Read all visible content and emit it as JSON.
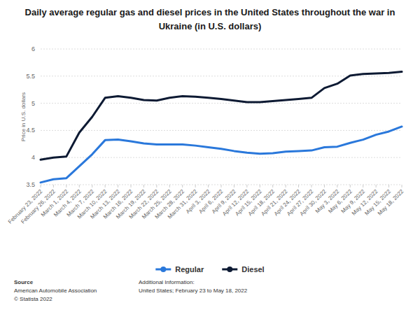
{
  "chart_data": {
    "type": "line",
    "title": "Daily average regular gas and diesel prices in the United States throughout the war in Ukraine (in U.S. dollars)",
    "y_label": "Price in U.S. dollars",
    "categories": [
      "February 23, 2022",
      "February 26, 2022",
      "March 1, 2022",
      "March 4, 2022",
      "March 7, 2022",
      "March 10, 2022",
      "March 13, 2022",
      "March 16, 2022",
      "March 19, 2022",
      "March 22, 2022",
      "March 25, 2022",
      "March 28, 2022",
      "March 31, 2022",
      "April 3, 2022",
      "April 6, 2022",
      "April 9, 2022",
      "April 12, 2022",
      "April 15, 2022",
      "April 18, 2022",
      "April 21, 2022",
      "April 24, 2022",
      "April 27, 2022",
      "April 30, 2022",
      "May 3, 2022",
      "May 6, 2022",
      "May 9, 2022",
      "May 12, 2022",
      "May 15, 2022",
      "May 18, 2022"
    ],
    "series": [
      {
        "name": "Regular",
        "color": "#2a78db",
        "values": [
          3.54,
          3.6,
          3.62,
          3.84,
          4.06,
          4.32,
          4.33,
          4.3,
          4.26,
          4.24,
          4.24,
          4.24,
          4.22,
          4.19,
          4.16,
          4.12,
          4.09,
          4.07,
          4.08,
          4.11,
          4.12,
          4.13,
          4.19,
          4.2,
          4.27,
          4.33,
          4.42,
          4.48,
          4.57
        ]
      },
      {
        "name": "Diesel",
        "color": "#0d1a33",
        "values": [
          3.96,
          4.0,
          4.02,
          4.46,
          4.75,
          5.1,
          5.13,
          5.1,
          5.06,
          5.05,
          5.1,
          5.13,
          5.12,
          5.1,
          5.08,
          5.05,
          5.02,
          5.02,
          5.04,
          5.06,
          5.08,
          5.1,
          5.28,
          5.36,
          5.51,
          5.54,
          5.55,
          5.56,
          5.58
        ]
      }
    ],
    "ylim": [
      3.5,
      6
    ],
    "yticks": [
      3.5,
      4,
      4.5,
      5,
      5.5,
      6
    ],
    "grid": true,
    "legend": "bottom",
    "source_label": "Source",
    "source": "American Automobile Association",
    "credit": "© Statista 2022",
    "info_label": "Additional Information:",
    "info": "United States; February 23 to May 18, 2022"
  }
}
